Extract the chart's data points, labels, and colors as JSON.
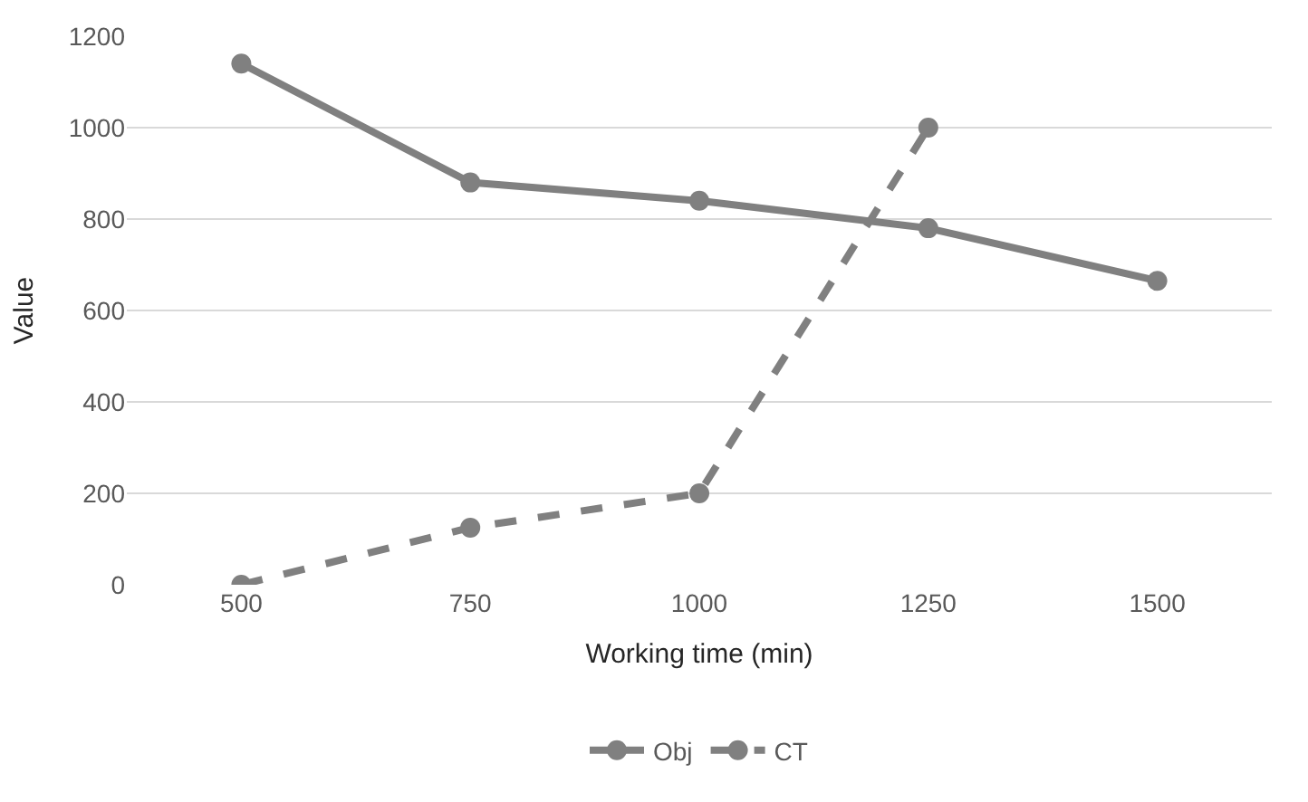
{
  "chart_data": {
    "type": "line",
    "xlabel": "Working time (min)",
    "ylabel": "Value",
    "categories": [
      "500",
      "750",
      "1000",
      "1250",
      "1500"
    ],
    "series": [
      {
        "name": "Obj",
        "color": "#808080",
        "values": [
          1140,
          880,
          840,
          780,
          665
        ],
        "line_style": "solid"
      },
      {
        "name": "CT",
        "color": "#808080",
        "values": [
          0,
          125,
          200,
          1000,
          null
        ],
        "line_style": "dashed"
      }
    ],
    "ylim": [
      0,
      1200
    ],
    "yticks": [
      0,
      200,
      400,
      600,
      800,
      1000,
      1200
    ],
    "grid": "y",
    "legend": "bottom",
    "marker": "circle"
  }
}
